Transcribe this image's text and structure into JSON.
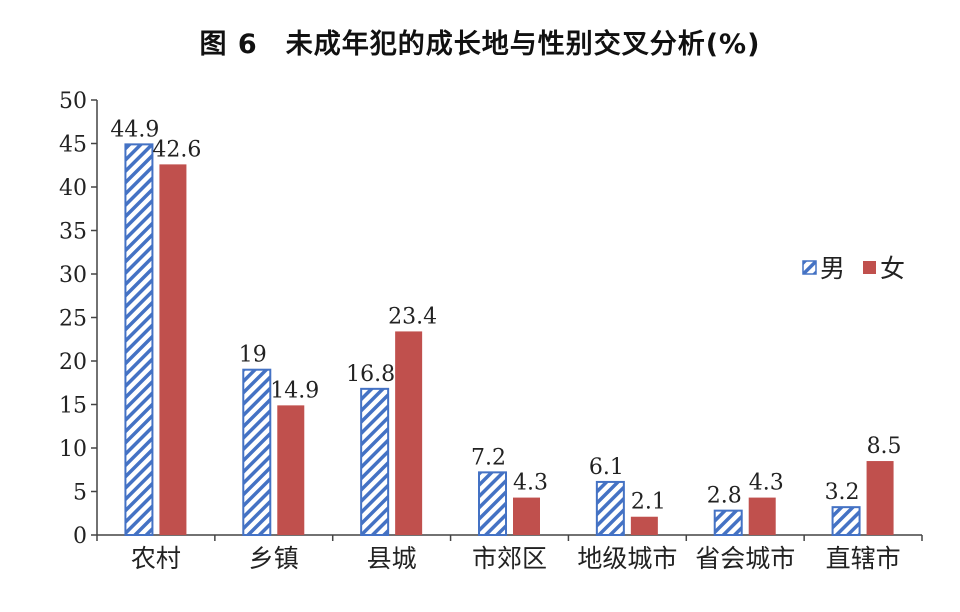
{
  "chart_data": {
    "type": "bar",
    "title": "图 6　未成年犯的成长地与性别交叉分析(%)",
    "xlabel": "",
    "ylabel": "",
    "categories": [
      "农村",
      "乡镇",
      "县城",
      "市郊区",
      "地级城市",
      "省会城市",
      "直辖市"
    ],
    "series": [
      {
        "name": "男",
        "values": [
          44.9,
          19,
          16.8,
          7.2,
          6.1,
          2.8,
          3.2
        ],
        "labels": [
          "44.9",
          "19",
          "16.8",
          "7.2",
          "6.1",
          "2.8",
          "3.2"
        ],
        "color": "#4472C4",
        "pattern": "diagonal-hatch"
      },
      {
        "name": "女",
        "values": [
          42.6,
          14.9,
          23.4,
          4.3,
          2.1,
          4.3,
          8.5
        ],
        "labels": [
          "42.6",
          "14.9",
          "23.4",
          "4.3",
          "2.1",
          "4.3",
          "8.5"
        ],
        "color": "#C0504D",
        "pattern": "solid"
      }
    ],
    "ylim": [
      0,
      50
    ],
    "yticks": [
      "0",
      "5",
      "10",
      "15",
      "20",
      "25",
      "30",
      "35",
      "40",
      "45",
      "50"
    ],
    "grid": false,
    "legend": "right"
  }
}
